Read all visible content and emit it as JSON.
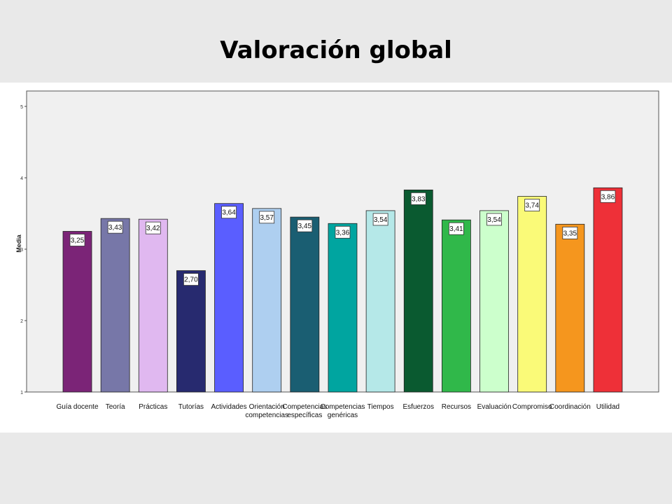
{
  "slide": {
    "title": "Valoración global"
  },
  "chart_data": {
    "type": "bar",
    "ylabel": "Media",
    "xlabel": "",
    "ylim": [
      1,
      5
    ],
    "yticks": [
      1,
      2,
      3,
      4,
      5
    ],
    "grid": false,
    "legend": "none",
    "categories": [
      [
        "Guía docente"
      ],
      [
        "Teoría"
      ],
      [
        "Prácticas"
      ],
      [
        "Tutorías"
      ],
      [
        "Actividades"
      ],
      [
        "Orientación",
        "competencias"
      ],
      [
        "Competencias",
        "específicas"
      ],
      [
        "Competencias",
        "genéricas"
      ],
      [
        "Tiempos"
      ],
      [
        "Esfuerzos"
      ],
      [
        "Recursos"
      ],
      [
        "Evaluación"
      ],
      [
        "Compromiso"
      ],
      [
        "Coordinación"
      ],
      [
        "Utilidad"
      ]
    ],
    "values": [
      3.25,
      3.43,
      3.42,
      2.7,
      3.64,
      3.57,
      3.45,
      3.36,
      3.54,
      3.83,
      3.41,
      3.54,
      3.74,
      3.35,
      3.86
    ],
    "value_labels": [
      "3,25",
      "3,43",
      "3,42",
      "2,70",
      "3,64",
      "3,57",
      "3,45",
      "3,36",
      "3,54",
      "3,83",
      "3,41",
      "3,54",
      "3,74",
      "3,35",
      "3,86"
    ],
    "colors": [
      "#7b2477",
      "#7777a8",
      "#e0b8f0",
      "#272a6f",
      "#5a5eff",
      "#aecff0",
      "#1a5e72",
      "#00a5a0",
      "#b5e8e8",
      "#0a5a30",
      "#30b84a",
      "#ccffcc",
      "#fafa78",
      "#f5961e",
      "#ee3038"
    ]
  }
}
